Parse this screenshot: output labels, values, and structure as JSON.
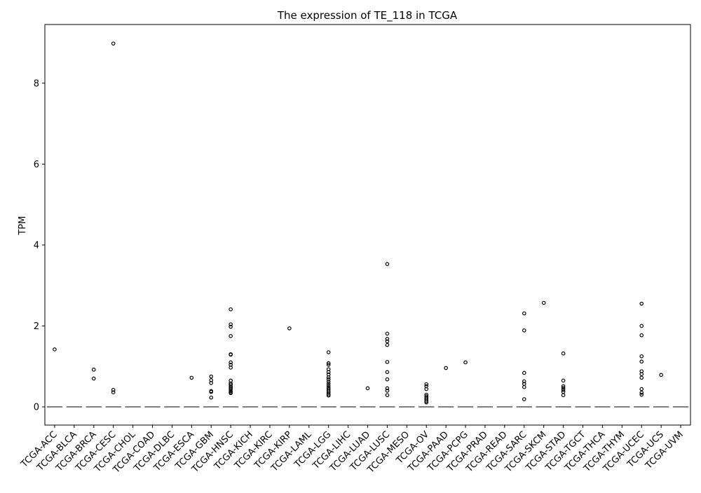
{
  "chart_data": {
    "type": "box",
    "title": "The expression of TE_118 in TCGA",
    "xlabel": "",
    "ylabel": "TPM",
    "ylim": [
      -0.45,
      9.45
    ],
    "yticks": [
      0,
      2,
      4,
      6,
      8
    ],
    "grid": false,
    "colors": {
      "median": "#555555",
      "outlier_edge": "#000000",
      "axes": "#000000"
    },
    "categories": [
      "TCGA-ACC",
      "TCGA-BLCA",
      "TCGA-BRCA",
      "TCGA-CESC",
      "TCGA-CHOL",
      "TCGA-COAD",
      "TCGA-DLBC",
      "TCGA-ESCA",
      "TCGA-GBM",
      "TCGA-HNSC",
      "TCGA-KICH",
      "TCGA-KIRC",
      "TCGA-KIRP",
      "TCGA-LAML",
      "TCGA-LGG",
      "TCGA-LIHC",
      "TCGA-LUAD",
      "TCGA-LUSC",
      "TCGA-MESO",
      "TCGA-OV",
      "TCGA-PAAD",
      "TCGA-PCPG",
      "TCGA-PRAD",
      "TCGA-READ",
      "TCGA-SARC",
      "TCGA-SKCM",
      "TCGA-STAD",
      "TCGA-TGCT",
      "TCGA-THCA",
      "TCGA-THYM",
      "TCGA-UCEC",
      "TCGA-UCS",
      "TCGA-UVM"
    ],
    "medians": [
      0,
      0,
      0,
      0,
      0,
      0,
      0,
      0,
      0,
      0,
      0,
      0,
      0,
      0,
      0,
      0,
      0,
      0,
      0,
      0,
      0,
      0,
      0,
      0,
      0,
      0,
      0,
      0,
      0,
      0,
      0,
      0,
      0
    ],
    "outliers": [
      [
        1.42
      ],
      [],
      [
        0.92,
        0.7
      ],
      [
        8.98,
        0.42,
        0.36
      ],
      [],
      [],
      [],
      [
        0.72
      ],
      [
        0.75,
        0.66,
        0.59,
        0.39,
        0.37,
        0.23
      ],
      [
        2.41,
        2.04,
        1.98,
        1.75,
        1.3,
        1.29,
        1.1,
        1.04,
        0.97,
        0.65,
        0.58,
        0.55,
        0.5,
        0.47,
        0.44,
        0.39,
        0.36,
        0.34
      ],
      [],
      [],
      [
        1.94
      ],
      [],
      [
        1.35,
        1.08,
        1.04,
        0.93,
        0.86,
        0.8,
        0.73,
        0.68,
        0.62,
        0.57,
        0.52,
        0.47,
        0.43,
        0.39,
        0.35,
        0.31,
        0.28
      ],
      [],
      [
        0.46
      ],
      [
        3.53,
        1.81,
        1.68,
        1.62,
        1.53,
        1.11,
        0.86,
        0.68,
        0.46,
        0.4,
        0.29
      ],
      [],
      [
        0.56,
        0.51,
        0.44,
        0.3,
        0.26,
        0.22,
        0.18,
        0.14,
        0.11
      ],
      [
        0.96
      ],
      [
        1.1
      ],
      [],
      [],
      [
        2.31,
        1.89,
        0.84,
        0.63,
        0.57,
        0.49,
        0.19
      ],
      [
        2.57
      ],
      [
        1.32,
        0.65,
        0.51,
        0.47,
        0.42,
        0.37,
        0.29
      ],
      [],
      [],
      [],
      [
        2.55,
        2.0,
        1.77,
        1.25,
        1.12,
        0.88,
        0.81,
        0.72,
        0.44,
        0.35,
        0.3
      ],
      [
        0.79
      ],
      []
    ]
  }
}
